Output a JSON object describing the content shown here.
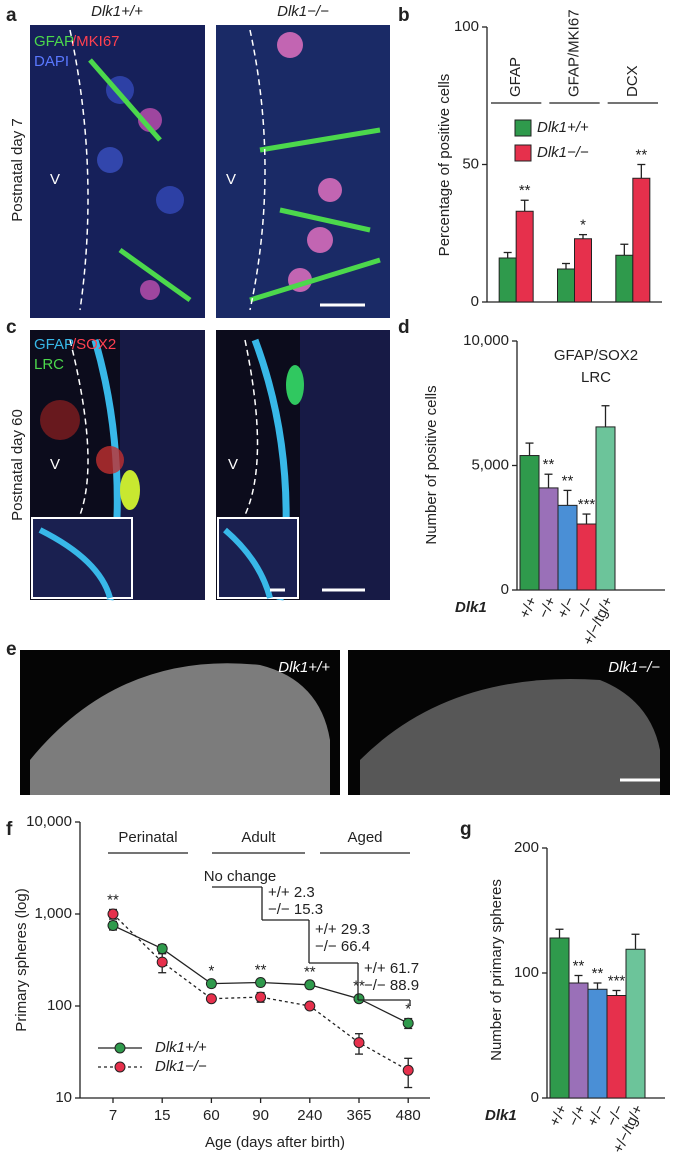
{
  "figure": {
    "panel_letters": [
      "a",
      "b",
      "c",
      "d",
      "e",
      "f",
      "g"
    ],
    "a": {
      "titles": [
        "Dlk1+/+",
        "Dlk1−/−"
      ],
      "side_label": "Postnatal day 7",
      "stains": [
        "GFAP",
        "/MKI67",
        "DAPI"
      ],
      "ventricle": [
        "V",
        "V"
      ]
    },
    "c": {
      "side_label": "Postnatal day 60",
      "stains": [
        "GFAP",
        "/SOX2",
        "LRC"
      ],
      "ventricle": [
        "V",
        "V"
      ]
    },
    "e": {
      "titles": [
        "Dlk1+/+",
        "Dlk1−/−"
      ]
    }
  },
  "chart_data": [
    {
      "type": "bar",
      "y_label": "Percentage of positive cells",
      "categories": [
        "GFAP",
        "GFAP/MKI67",
        "DCX"
      ],
      "series": [
        {
          "name": "Dlk1+/+",
          "color": "#2f9a4c",
          "values": [
            16,
            12,
            17
          ],
          "errors": [
            2,
            2,
            4
          ]
        },
        {
          "name": "Dlk1−/−",
          "color": "#e6304c",
          "values": [
            33,
            23,
            45
          ],
          "errors": [
            4,
            1.5,
            5
          ],
          "significance": [
            "**",
            "*",
            "**"
          ]
        }
      ],
      "ylim": [
        0,
        100
      ],
      "yticks": [
        0,
        50,
        100
      ],
      "legend": "upper left"
    },
    {
      "type": "bar",
      "title": "GFAP/SOX2",
      "subtitle": "LRC",
      "y_label": "Number of positive cells",
      "x_label": "Dlk1",
      "categories": [
        "+/+",
        "−/+",
        "+/−",
        "−/−",
        "+/−/tg/+"
      ],
      "values": [
        5400,
        4100,
        3400,
        2650,
        6550
      ],
      "errors": [
        500,
        550,
        600,
        400,
        850
      ],
      "significance": [
        null,
        "**",
        "**",
        "***",
        null
      ],
      "colors": [
        "#2f9a4c",
        "#9a70b8",
        "#4a8fd6",
        "#e6304c",
        "#6cc49a"
      ],
      "ylim": [
        0,
        10000
      ],
      "yticks": [
        0,
        {
          "value": 5000,
          "label": "5,000"
        },
        {
          "value": 10000,
          "label": "10,000"
        }
      ]
    },
    {
      "type": "line",
      "y_label": "Primary spheres (log)",
      "x_label": "Age (days after birth)",
      "log": true,
      "categories": [
        "7",
        "15",
        "60",
        "90",
        "240",
        "365",
        "480"
      ],
      "series": [
        {
          "name": "Dlk1+/+",
          "color": "#2f9a4c",
          "line_style": "solid",
          "values": [
            750,
            420,
            175,
            180,
            170,
            120,
            65
          ],
          "errors": [
            80,
            45,
            15,
            15,
            15,
            10,
            8
          ]
        },
        {
          "name": "Dlk1−/−",
          "color": "#e6304c",
          "line_style": "dotted",
          "values": [
            1000,
            300,
            120,
            125,
            100,
            40,
            20
          ],
          "errors": [
            120,
            70,
            8,
            15,
            6,
            10,
            7
          ]
        }
      ],
      "significance": [
        "**",
        null,
        "*",
        "**",
        "**",
        "**",
        "*"
      ],
      "periods": [
        "Perinatal",
        "Adult",
        "Aged"
      ],
      "annotations": [
        "No change",
        "+/+ 2.3",
        "−/− 15.3",
        "+/+ 29.3",
        "−/− 66.4",
        "+/+ 61.7",
        "−/− 88.9"
      ],
      "ylim": [
        10,
        10000
      ],
      "yticks": [
        10,
        100,
        {
          "value": 1000,
          "label": "1,000"
        },
        {
          "value": 10000,
          "label": "10,000"
        }
      ],
      "legend": "lower left"
    },
    {
      "type": "bar",
      "y_label": "Number of primary spheres",
      "x_label": "Dlk1",
      "categories": [
        "+/+",
        "−/+",
        "+/−",
        "−/−",
        "+/−/tg/+"
      ],
      "values": [
        128,
        92,
        87,
        82,
        119
      ],
      "errors": [
        7,
        6,
        5,
        4,
        12
      ],
      "significance": [
        null,
        "**",
        "**",
        "***",
        null
      ],
      "colors": [
        "#2f9a4c",
        "#9a70b8",
        "#4a8fd6",
        "#e6304c",
        "#6cc49a"
      ],
      "ylim": [
        0,
        200
      ],
      "yticks": [
        0,
        100,
        200
      ]
    }
  ]
}
